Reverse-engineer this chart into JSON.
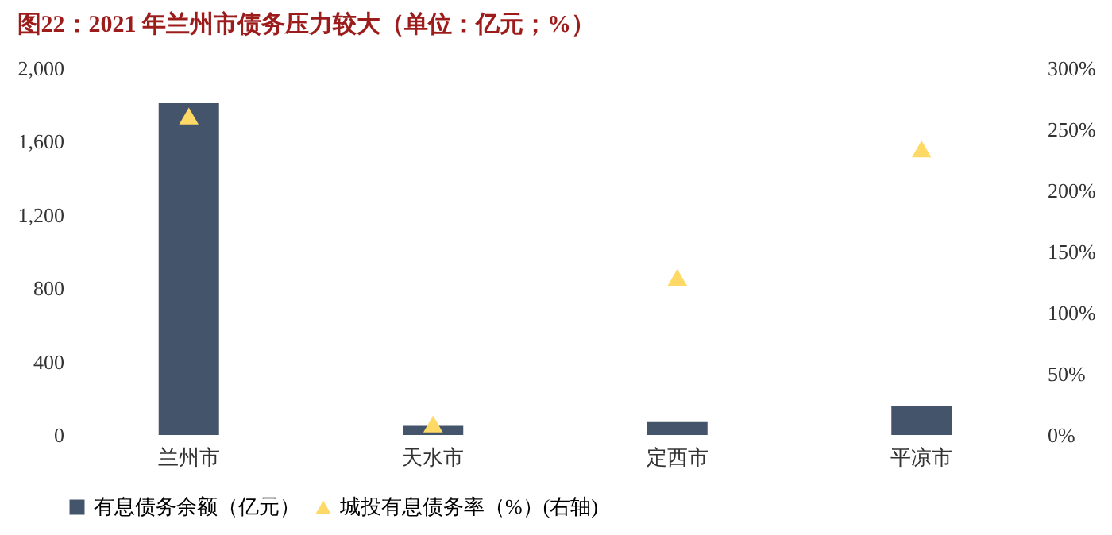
{
  "chart_data": {
    "type": "bar",
    "title": "图22：2021 年兰州市债务压力较大（单位：亿元；%）",
    "categories": [
      "兰州市",
      "天水市",
      "定西市",
      "平凉市"
    ],
    "series": [
      {
        "name": "有息债务余额（亿元）",
        "color": "#44546a",
        "values": [
          1810,
          50,
          70,
          160
        ]
      },
      {
        "name": "城投有息债务率（%）(右轴)",
        "color": "#ffd966",
        "type": "scatter",
        "marker": "triangle",
        "axis": "y2",
        "values": [
          261,
          9,
          129,
          234
        ]
      }
    ],
    "ylim": [
      0,
      2000
    ],
    "yticks": [
      {
        "value": 0,
        "label": "0"
      },
      {
        "value": 400,
        "label": "400"
      },
      {
        "value": 800,
        "label": "800"
      },
      {
        "value": 1200,
        "label": "1,200"
      },
      {
        "value": 1600,
        "label": "1,600"
      },
      {
        "value": 2000,
        "label": "2,000"
      }
    ],
    "y2lim": [
      0,
      300
    ],
    "y2ticks": [
      {
        "value": 0,
        "label": "0%"
      },
      {
        "value": 50,
        "label": "50%"
      },
      {
        "value": 100,
        "label": "100%"
      },
      {
        "value": 150,
        "label": "150%"
      },
      {
        "value": 200,
        "label": "200%"
      },
      {
        "value": 250,
        "label": "250%"
      },
      {
        "value": 300,
        "label": "300%"
      }
    ],
    "legend": "bottom",
    "grid": false
  }
}
